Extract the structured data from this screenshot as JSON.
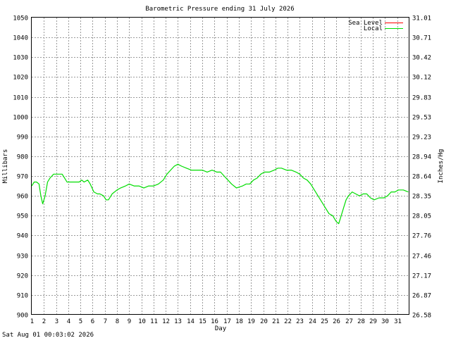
{
  "timestamp": "Sat Aug 01 00:03:02 2026",
  "chart_data": {
    "type": "line",
    "title": "Barometric Pressure ending 31 July 2026",
    "xlabel": "Day",
    "ylabel": "Millibars",
    "ylabel_right": "Inches/Hg",
    "xlim": [
      1,
      32
    ],
    "ylim": [
      900,
      1050
    ],
    "x_ticks": [
      "1",
      "2",
      "3",
      "4",
      "5",
      "6",
      "7",
      "8",
      "9",
      "10",
      "11",
      "12",
      "13",
      "14",
      "15",
      "16",
      "17",
      "18",
      "19",
      "20",
      "21",
      "22",
      "23",
      "24",
      "25",
      "26",
      "27",
      "28",
      "29",
      "30",
      "31"
    ],
    "y_ticks": [
      900,
      910,
      920,
      930,
      940,
      950,
      960,
      970,
      980,
      990,
      1000,
      1010,
      1020,
      1030,
      1040,
      1050
    ],
    "y_ticks_right": [
      "26.58",
      "26.87",
      "27.17",
      "27.46",
      "27.76",
      "28.05",
      "28.35",
      "28.64",
      "28.94",
      "29.23",
      "29.53",
      "29.83",
      "30.12",
      "30.42",
      "30.71",
      "31.01"
    ],
    "grid": true,
    "legend_position": "top-right",
    "series": [
      {
        "name": "Sea Level",
        "color": "#ff0000",
        "x": [],
        "y": []
      },
      {
        "name": "Local",
        "color": "#00dd00",
        "x": [
          1.0,
          1.2,
          1.4,
          1.6,
          1.75,
          1.9,
          2.1,
          2.3,
          2.5,
          2.8,
          3.0,
          3.5,
          3.7,
          3.9,
          4.3,
          4.7,
          4.9,
          5.1,
          5.3,
          5.6,
          5.8,
          6.1,
          6.4,
          6.6,
          6.9,
          7.1,
          7.3,
          7.6,
          8.0,
          8.3,
          8.7,
          9.0,
          9.4,
          9.8,
          10.2,
          10.6,
          11.0,
          11.4,
          11.8,
          12.1,
          12.4,
          12.7,
          13.0,
          13.3,
          13.7,
          14.1,
          14.6,
          15.0,
          15.4,
          15.8,
          16.2,
          16.5,
          16.8,
          17.1,
          17.4,
          17.8,
          18.3,
          18.6,
          18.9,
          19.2,
          19.5,
          19.8,
          20.1,
          20.5,
          20.9,
          21.2,
          21.5,
          21.9,
          22.3,
          22.7,
          23.0,
          23.3,
          23.6,
          23.9,
          24.2,
          24.5,
          24.8,
          25.1,
          25.4,
          25.7,
          26.0,
          26.2,
          26.4,
          26.6,
          26.8,
          27.0,
          27.3,
          27.6,
          27.9,
          28.2,
          28.5,
          28.8,
          29.1,
          29.5,
          29.9,
          30.2,
          30.5,
          30.8,
          31.1,
          31.5,
          31.9
        ],
        "y": [
          965,
          967,
          967,
          966,
          960,
          956,
          960,
          967,
          969,
          971,
          971,
          971,
          969,
          967,
          967,
          967,
          967,
          968,
          967,
          968,
          966,
          962,
          961,
          961,
          960,
          958,
          958,
          961,
          963,
          964,
          965,
          966,
          965,
          965,
          964,
          965,
          965,
          966,
          968,
          971,
          973,
          975,
          976,
          975,
          974,
          973,
          973,
          973,
          972,
          973,
          972,
          972,
          970,
          968,
          966,
          964,
          965,
          966,
          966,
          968,
          969,
          971,
          972,
          972,
          973,
          974,
          974,
          973,
          973,
          972,
          971,
          969,
          968,
          966,
          963,
          960,
          957,
          954,
          951,
          950,
          947,
          946,
          950,
          954,
          958,
          960,
          962,
          961,
          960,
          961,
          961,
          959,
          958,
          959,
          959,
          960,
          962,
          962,
          963,
          963,
          962
        ]
      }
    ]
  }
}
